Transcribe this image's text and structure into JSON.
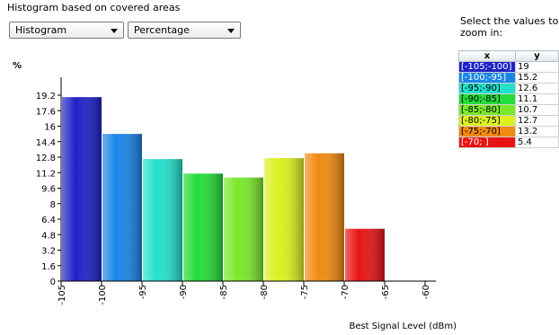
{
  "window": {
    "title": "Histogram based on covered areas"
  },
  "controls": {
    "chart_type": "Histogram",
    "value_mode": "Percentage"
  },
  "side_panel": {
    "header": "Select the values to zoom in:",
    "columns": [
      "x",
      "y"
    ],
    "rows": [
      {
        "x": "[-105;-100]",
        "y": "19",
        "color": "#1e22c8"
      },
      {
        "x": "[-100;-95]",
        "y": "15.2",
        "color": "#1a86e8"
      },
      {
        "x": "[-95;-90]",
        "y": "12.6",
        "color": "#22e0cc"
      },
      {
        "x": "[-90;-85]",
        "y": "11.1",
        "color": "#24dc3a"
      },
      {
        "x": "[-85;-80]",
        "y": "10.7",
        "color": "#7ae82a"
      },
      {
        "x": "[-80;-75]",
        "y": "12.7",
        "color": "#dcf020"
      },
      {
        "x": "[-75;-70]",
        "y": "13.2",
        "color": "#f08a10"
      },
      {
        "x": "[-70;    ]",
        "y": "5.4",
        "color": "#e81414"
      }
    ]
  },
  "chart_data": {
    "type": "bar",
    "title": "",
    "ylabel": "%",
    "xlabel": "Best Signal Level (dBm)",
    "bins": [
      {
        "from": -105,
        "to": -100,
        "value": 19,
        "color": "#1e22c8"
      },
      {
        "from": -100,
        "to": -95,
        "value": 15.2,
        "color": "#1a86e8"
      },
      {
        "from": -95,
        "to": -90,
        "value": 12.6,
        "color": "#22e0cc"
      },
      {
        "from": -90,
        "to": -85,
        "value": 11.1,
        "color": "#24dc3a"
      },
      {
        "from": -85,
        "to": -80,
        "value": 10.7,
        "color": "#7ae82a"
      },
      {
        "from": -80,
        "to": -75,
        "value": 12.7,
        "color": "#dcf020"
      },
      {
        "from": -75,
        "to": -70,
        "value": 13.2,
        "color": "#f08a10"
      },
      {
        "from": -70,
        "to": -65,
        "value": 5.4,
        "color": "#e81414"
      }
    ],
    "y_ticks": [
      "0",
      "1.6",
      "3.2",
      "4.8",
      "6.4",
      "8",
      "9.6",
      "11.2",
      "12.8",
      "14.4",
      "16",
      "17.6",
      "19.2"
    ],
    "x_ticks": [
      "-105",
      "-100",
      "-95",
      "-90",
      "-85",
      "-80",
      "-75",
      "-70",
      "-65",
      "-60"
    ],
    "ylim": [
      0,
      19.2
    ],
    "xlim": [
      -105,
      -60
    ]
  }
}
